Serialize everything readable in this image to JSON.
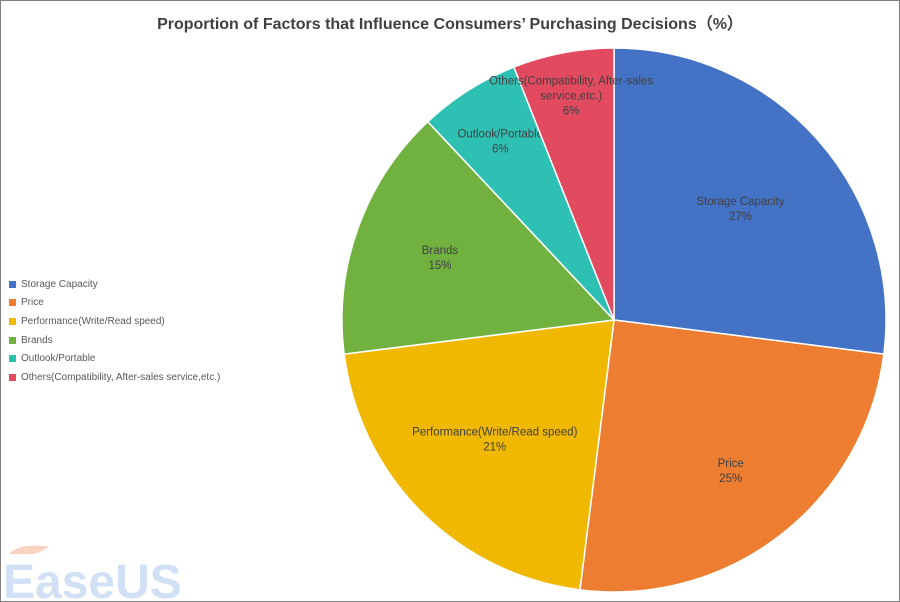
{
  "chart_data": {
    "type": "pie",
    "title": "Proportion of Factors that Influence Consumers’ Purchasing Decisions（%）",
    "legend_position": "left",
    "slices": [
      {
        "label": "Storage Capacity",
        "value": 27,
        "value_label": "27%",
        "color": "#4472c4"
      },
      {
        "label": "Price",
        "value": 25,
        "value_label": "25%",
        "color": "#ed7d31"
      },
      {
        "label": "Performance(Write/Read speed)",
        "value": 21,
        "value_label": "21%",
        "color": "#f0b800"
      },
      {
        "label": "Brands",
        "value": 15,
        "value_label": "15%",
        "color": "#70b140"
      },
      {
        "label": "Outlook/Portable",
        "value": 6,
        "value_label": "6%",
        "color": "#2fc0b4"
      },
      {
        "label": "Others(Compatibility, After-sales service,etc.)",
        "value": 6,
        "value_label": "6%",
        "color": "#e24a60"
      }
    ]
  },
  "watermark": {
    "text": "EaseUS"
  }
}
